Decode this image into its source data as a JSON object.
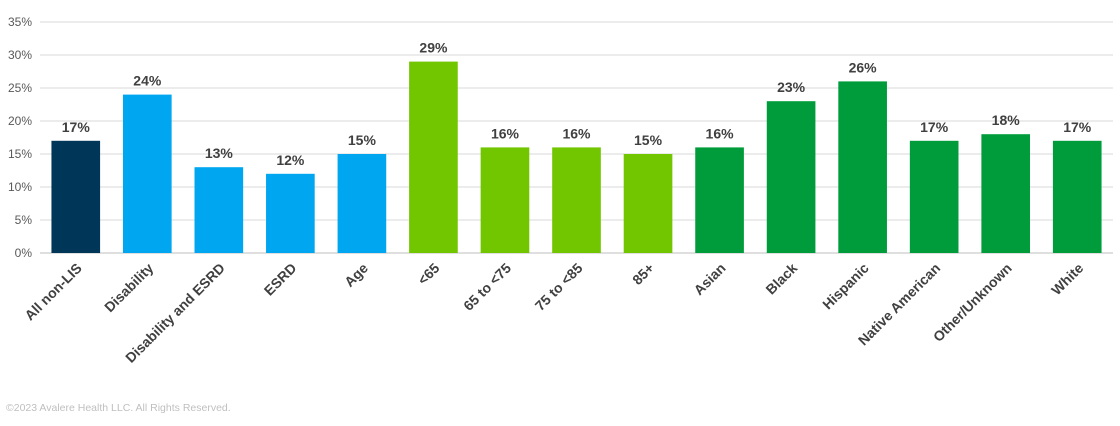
{
  "chart_data": {
    "type": "bar",
    "title": "",
    "xlabel": "",
    "ylabel": "",
    "ylim": [
      0,
      35
    ],
    "yticks": [
      "0%",
      "5%",
      "10%",
      "15%",
      "20%",
      "25%",
      "30%",
      "35%"
    ],
    "grid": true,
    "categories": [
      "All non-LIS",
      "Disability",
      "Disability and ESRD",
      "ESRD",
      "Age",
      "<65",
      "65 to <75",
      "75 to <85",
      "85+",
      "Asian",
      "Black",
      "Hispanic",
      "Native American",
      "Other/Unknown",
      "White"
    ],
    "values": [
      17,
      24,
      13,
      12,
      15,
      29,
      16,
      16,
      15,
      16,
      23,
      26,
      17,
      18,
      17
    ],
    "data_labels": [
      "17%",
      "24%",
      "13%",
      "12%",
      "15%",
      "29%",
      "16%",
      "16%",
      "15%",
      "16%",
      "23%",
      "26%",
      "17%",
      "18%",
      "17%"
    ],
    "bar_colors": [
      "#003658",
      "#00a6f0",
      "#00a6f0",
      "#00a6f0",
      "#00a6f0",
      "#71c600",
      "#71c600",
      "#71c600",
      "#71c600",
      "#009c3b",
      "#009c3b",
      "#009c3b",
      "#009c3b",
      "#009c3b",
      "#009c3b"
    ]
  },
  "footer": {
    "copyright": "©2023 Avalere Health LLC.  All Rights Reserved."
  }
}
